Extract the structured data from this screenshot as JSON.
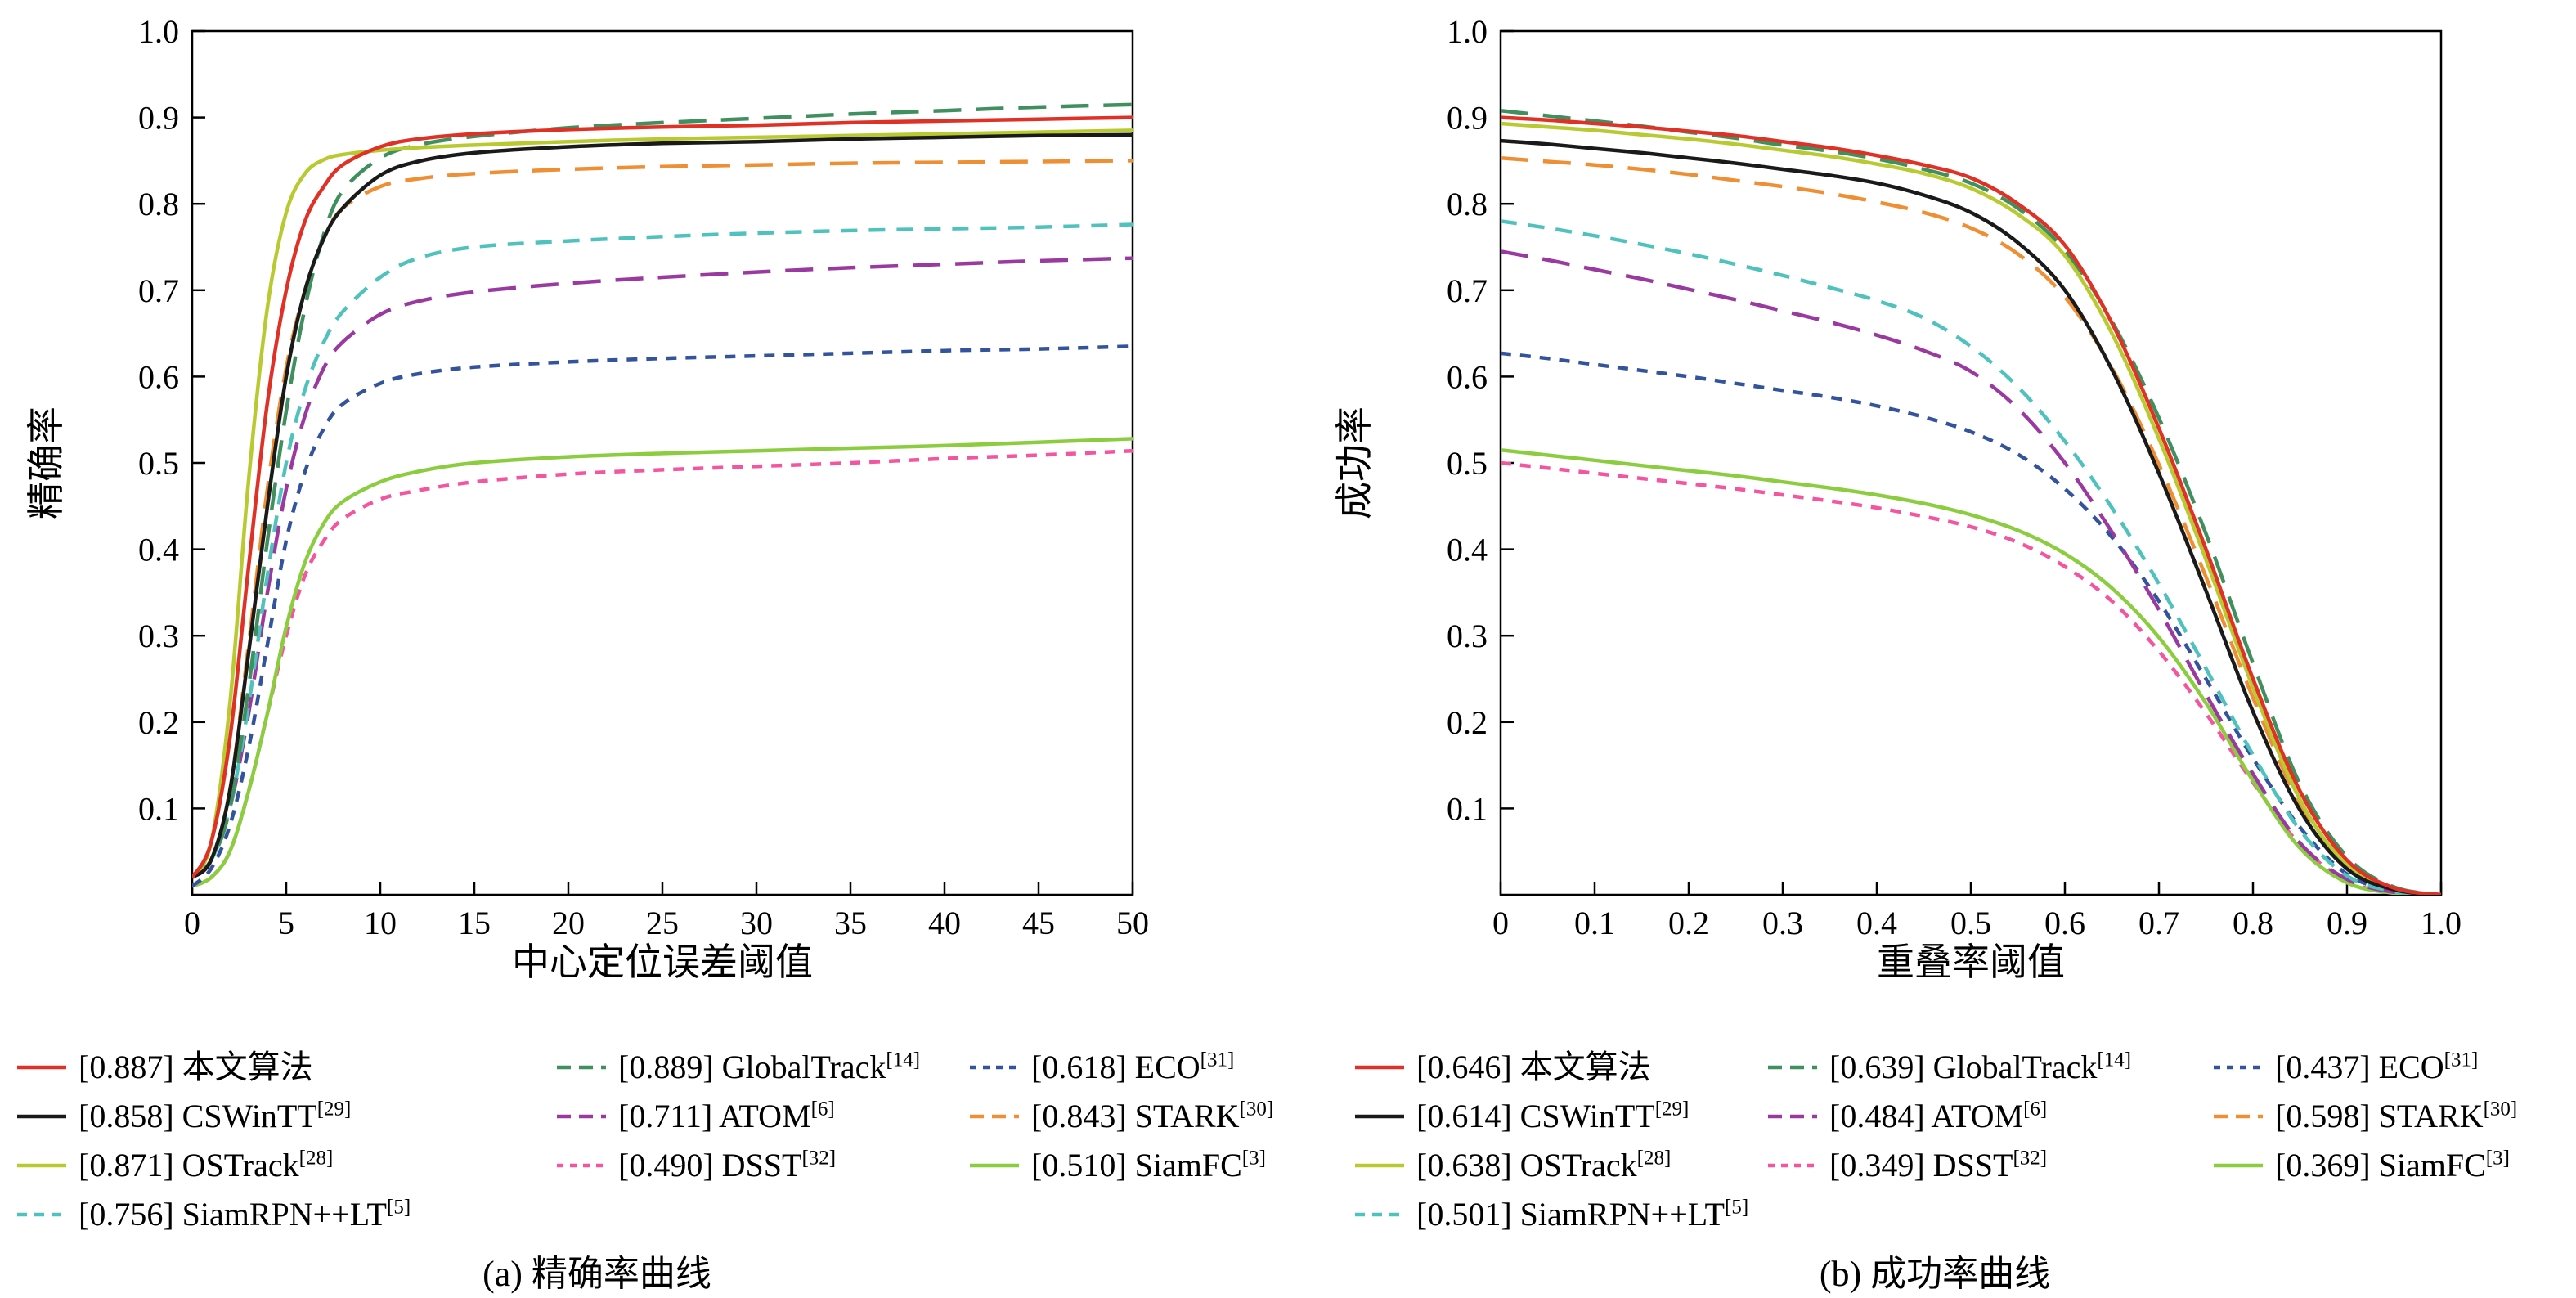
{
  "figure_caption_a": "(a) 精确率曲线",
  "figure_caption_b": "(b) 成功率曲线",
  "chart_data": [
    {
      "type": "line",
      "panel": "a",
      "caption": "(a) 精确率曲线",
      "xlabel": "中心定位误差阈值",
      "ylabel": "精确率",
      "xlim": [
        0,
        50
      ],
      "ylim": [
        0,
        1.0
      ],
      "xticks": [
        0,
        5,
        10,
        15,
        20,
        25,
        30,
        35,
        40,
        45,
        50
      ],
      "xtick_labels": [
        "0",
        "5",
        "10",
        "15",
        "20",
        "25",
        "30",
        "35",
        "40",
        "45",
        "50"
      ],
      "yticks": [
        0.1,
        0.2,
        0.3,
        0.4,
        0.5,
        0.6,
        0.7,
        0.8,
        0.9,
        1.0
      ],
      "ytick_labels": [
        "0.1",
        "0.2",
        "0.3",
        "0.4",
        "0.5",
        "0.6",
        "0.7",
        "0.8",
        "0.9",
        "1.0"
      ],
      "grid": false,
      "legend_position": "below",
      "x": [
        0,
        1,
        2,
        3,
        4,
        5,
        6,
        7,
        8,
        10,
        12,
        15,
        20,
        25,
        30,
        35,
        40,
        45,
        50
      ],
      "series": [
        {
          "key": "dsst",
          "name": "DSST",
          "ref": "32",
          "score": "0.490",
          "color": "#f4559f",
          "dash": "short",
          "values": [
            0.01,
            0.02,
            0.05,
            0.12,
            0.21,
            0.3,
            0.37,
            0.41,
            0.435,
            0.458,
            0.468,
            0.478,
            0.487,
            0.492,
            0.496,
            0.5,
            0.505,
            0.509,
            0.514
          ]
        },
        {
          "key": "siamfc",
          "name": "SiamFC",
          "ref": "3",
          "score": "0.510",
          "color": "#8bcd3f",
          "dash": "solid",
          "values": [
            0.01,
            0.02,
            0.05,
            0.12,
            0.21,
            0.31,
            0.385,
            0.43,
            0.455,
            0.478,
            0.49,
            0.5,
            0.507,
            0.511,
            0.514,
            0.517,
            0.52,
            0.524,
            0.528
          ]
        },
        {
          "key": "eco",
          "name": "ECO",
          "ref": "31",
          "score": "0.618",
          "color": "#33539c",
          "dash": "short",
          "values": [
            0.01,
            0.03,
            0.08,
            0.17,
            0.29,
            0.41,
            0.49,
            0.54,
            0.568,
            0.592,
            0.603,
            0.611,
            0.617,
            0.621,
            0.624,
            0.627,
            0.63,
            0.632,
            0.635
          ]
        },
        {
          "key": "atom",
          "name": "ATOM",
          "ref": "6",
          "score": "0.711",
          "color": "#9a3aa0",
          "dash": "long",
          "values": [
            0.02,
            0.04,
            0.1,
            0.21,
            0.35,
            0.47,
            0.555,
            0.61,
            0.64,
            0.672,
            0.687,
            0.698,
            0.708,
            0.715,
            0.721,
            0.726,
            0.73,
            0.734,
            0.737
          ]
        },
        {
          "key": "siamrpnlt",
          "name": "SiamRPN++LT",
          "ref": "5",
          "score": "0.756",
          "color": "#4fc2bd",
          "dash": "med",
          "values": [
            0.02,
            0.04,
            0.1,
            0.22,
            0.37,
            0.5,
            0.585,
            0.64,
            0.675,
            0.715,
            0.737,
            0.75,
            0.757,
            0.762,
            0.766,
            0.769,
            0.771,
            0.773,
            0.776
          ]
        },
        {
          "key": "stark",
          "name": "STARK",
          "ref": "30",
          "score": "0.843",
          "color": "#ef8f33",
          "dash": "long",
          "values": [
            0.02,
            0.04,
            0.12,
            0.29,
            0.47,
            0.61,
            0.7,
            0.76,
            0.795,
            0.82,
            0.829,
            0.835,
            0.84,
            0.843,
            0.845,
            0.847,
            0.848,
            0.849,
            0.85
          ]
        },
        {
          "key": "globaltrack",
          "name": "GlobalTrack",
          "ref": "14",
          "score": "0.889",
          "color": "#3f8f5f",
          "dash": "long",
          "values": [
            0.02,
            0.04,
            0.1,
            0.24,
            0.41,
            0.56,
            0.68,
            0.765,
            0.815,
            0.853,
            0.868,
            0.878,
            0.888,
            0.894,
            0.899,
            0.904,
            0.908,
            0.912,
            0.915
          ]
        },
        {
          "key": "ostrack",
          "name": "OSTrack",
          "ref": "28",
          "score": "0.871",
          "color": "#b9c930",
          "dash": "solid",
          "values": [
            0.02,
            0.06,
            0.22,
            0.48,
            0.68,
            0.79,
            0.835,
            0.851,
            0.857,
            0.862,
            0.865,
            0.868,
            0.872,
            0.875,
            0.877,
            0.879,
            0.881,
            0.883,
            0.885
          ]
        },
        {
          "key": "cswintt",
          "name": "CSWinTT",
          "ref": "29",
          "score": "0.858",
          "color": "#1a1a1a",
          "dash": "solid",
          "values": [
            0.02,
            0.04,
            0.12,
            0.28,
            0.45,
            0.6,
            0.7,
            0.76,
            0.795,
            0.833,
            0.849,
            0.859,
            0.866,
            0.87,
            0.872,
            0.875,
            0.877,
            0.879,
            0.88
          ]
        },
        {
          "key": "ours",
          "name": "本文算法",
          "ref": "",
          "score": "0.887",
          "color": "#e03127",
          "dash": "solid",
          "values": [
            0.02,
            0.06,
            0.18,
            0.38,
            0.57,
            0.7,
            0.78,
            0.82,
            0.845,
            0.866,
            0.875,
            0.881,
            0.886,
            0.889,
            0.891,
            0.894,
            0.896,
            0.898,
            0.9
          ]
        }
      ],
      "legend_order": [
        "ours",
        "globaltrack",
        "eco",
        "cswintt",
        "atom",
        "stark",
        "ostrack",
        "dsst",
        "siamfc",
        "siamrpnlt"
      ]
    },
    {
      "type": "line",
      "panel": "b",
      "caption": "(b) 成功率曲线",
      "xlabel": "重叠率阈值",
      "ylabel": "成功率",
      "xlim": [
        0,
        1.0
      ],
      "ylim": [
        0,
        1.0
      ],
      "xticks": [
        0,
        0.1,
        0.2,
        0.3,
        0.4,
        0.5,
        0.6,
        0.7,
        0.8,
        0.9,
        1.0
      ],
      "xtick_labels": [
        "0",
        "0.1",
        "0.2",
        "0.3",
        "0.4",
        "0.5",
        "0.6",
        "0.7",
        "0.8",
        "0.9",
        "1.0"
      ],
      "yticks": [
        0.1,
        0.2,
        0.3,
        0.4,
        0.5,
        0.6,
        0.7,
        0.8,
        0.9,
        1.0
      ],
      "ytick_labels": [
        "0.1",
        "0.2",
        "0.3",
        "0.4",
        "0.5",
        "0.6",
        "0.7",
        "0.8",
        "0.9",
        "1.0"
      ],
      "grid": false,
      "legend_position": "below",
      "x": [
        0,
        0.05,
        0.1,
        0.15,
        0.2,
        0.25,
        0.3,
        0.35,
        0.4,
        0.45,
        0.5,
        0.55,
        0.6,
        0.65,
        0.7,
        0.75,
        0.8,
        0.85,
        0.9,
        0.95,
        1.0
      ],
      "series": [
        {
          "key": "dsst",
          "name": "DSST",
          "ref": "32",
          "score": "0.349",
          "color": "#f4559f",
          "dash": "short",
          "values": [
            0.5,
            0.494,
            0.488,
            0.482,
            0.476,
            0.47,
            0.463,
            0.456,
            0.448,
            0.438,
            0.426,
            0.408,
            0.38,
            0.34,
            0.282,
            0.21,
            0.13,
            0.058,
            0.016,
            0.002,
            0
          ]
        },
        {
          "key": "siamfc",
          "name": "SiamFC",
          "ref": "3",
          "score": "0.369",
          "color": "#8bcd3f",
          "dash": "solid",
          "values": [
            0.515,
            0.509,
            0.503,
            0.497,
            0.491,
            0.485,
            0.478,
            0.471,
            0.463,
            0.453,
            0.44,
            0.422,
            0.395,
            0.355,
            0.298,
            0.222,
            0.132,
            0.054,
            0.014,
            0.002,
            0
          ]
        },
        {
          "key": "eco",
          "name": "ECO",
          "ref": "31",
          "score": "0.437",
          "color": "#33539c",
          "dash": "short",
          "values": [
            0.627,
            0.621,
            0.614,
            0.607,
            0.6,
            0.592,
            0.584,
            0.576,
            0.566,
            0.553,
            0.536,
            0.51,
            0.47,
            0.414,
            0.34,
            0.25,
            0.158,
            0.078,
            0.024,
            0.004,
            0
          ]
        },
        {
          "key": "atom",
          "name": "ATOM",
          "ref": "6",
          "score": "0.484",
          "color": "#9a3aa0",
          "dash": "long",
          "values": [
            0.745,
            0.735,
            0.724,
            0.713,
            0.701,
            0.689,
            0.676,
            0.663,
            0.648,
            0.63,
            0.606,
            0.563,
            0.5,
            0.42,
            0.33,
            0.232,
            0.14,
            0.06,
            0.018,
            0.003,
            0
          ]
        },
        {
          "key": "siamrpnlt",
          "name": "SiamRPN++LT",
          "ref": "5",
          "score": "0.501",
          "color": "#4fc2bd",
          "dash": "med",
          "values": [
            0.78,
            0.772,
            0.763,
            0.753,
            0.742,
            0.73,
            0.717,
            0.703,
            0.688,
            0.668,
            0.635,
            0.588,
            0.525,
            0.448,
            0.36,
            0.262,
            0.162,
            0.075,
            0.022,
            0.004,
            0
          ]
        },
        {
          "key": "stark",
          "name": "STARK",
          "ref": "30",
          "score": "0.598",
          "color": "#ef8f33",
          "dash": "long",
          "values": [
            0.853,
            0.849,
            0.845,
            0.84,
            0.834,
            0.827,
            0.82,
            0.812,
            0.802,
            0.79,
            0.772,
            0.742,
            0.692,
            0.61,
            0.498,
            0.368,
            0.228,
            0.106,
            0.036,
            0.007,
            0
          ]
        },
        {
          "key": "globaltrack",
          "name": "GlobalTrack",
          "ref": "14",
          "score": "0.639",
          "color": "#3f8f5f",
          "dash": "long",
          "values": [
            0.908,
            0.902,
            0.896,
            0.89,
            0.883,
            0.876,
            0.868,
            0.861,
            0.852,
            0.84,
            0.824,
            0.795,
            0.746,
            0.664,
            0.552,
            0.418,
            0.268,
            0.128,
            0.044,
            0.009,
            0
          ]
        },
        {
          "key": "ostrack",
          "name": "OSTrack",
          "ref": "28",
          "score": "0.638",
          "color": "#b9c930",
          "dash": "solid",
          "values": [
            0.893,
            0.889,
            0.885,
            0.88,
            0.875,
            0.869,
            0.862,
            0.855,
            0.846,
            0.835,
            0.818,
            0.788,
            0.74,
            0.65,
            0.528,
            0.388,
            0.24,
            0.11,
            0.034,
            0.007,
            0
          ]
        },
        {
          "key": "cswintt",
          "name": "CSWinTT",
          "ref": "29",
          "score": "0.614",
          "color": "#1a1a1a",
          "dash": "solid",
          "values": [
            0.873,
            0.869,
            0.864,
            0.859,
            0.853,
            0.847,
            0.84,
            0.833,
            0.824,
            0.81,
            0.79,
            0.755,
            0.7,
            0.608,
            0.488,
            0.352,
            0.212,
            0.098,
            0.03,
            0.006,
            0
          ]
        },
        {
          "key": "ours",
          "name": "本文算法",
          "ref": "",
          "score": "0.646",
          "color": "#e03127",
          "dash": "solid",
          "values": [
            0.9,
            0.897,
            0.893,
            0.889,
            0.884,
            0.879,
            0.872,
            0.865,
            0.856,
            0.845,
            0.83,
            0.8,
            0.752,
            0.662,
            0.54,
            0.4,
            0.25,
            0.12,
            0.04,
            0.008,
            0
          ]
        }
      ],
      "legend_order": [
        "ours",
        "globaltrack",
        "eco",
        "cswintt",
        "atom",
        "stark",
        "ostrack",
        "dsst",
        "siamfc",
        "siamrpnlt"
      ]
    }
  ]
}
